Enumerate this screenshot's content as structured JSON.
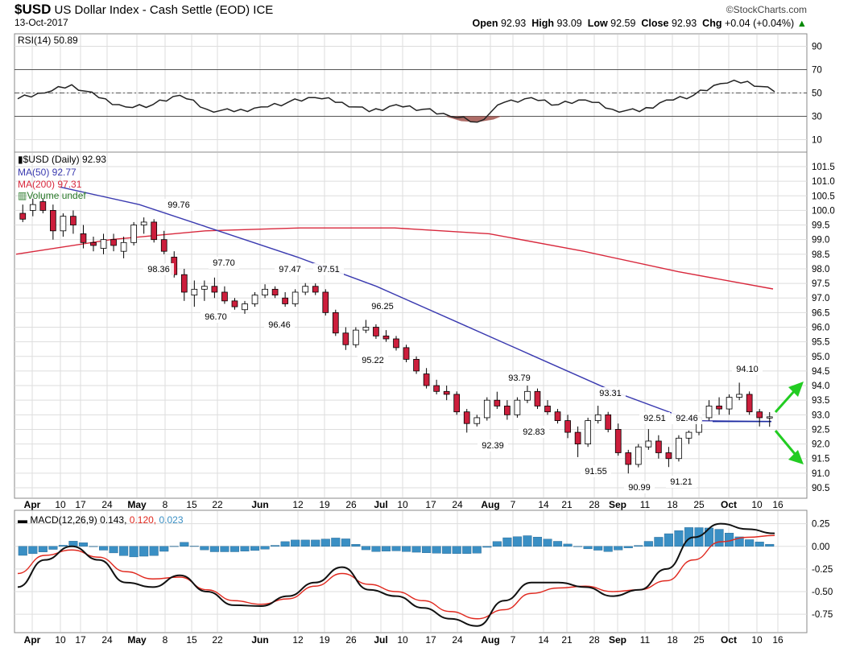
{
  "header": {
    "symbol": "$USD",
    "name": "US Dollar Index - Cash Settle (EOD)",
    "exchange": "ICE",
    "date": "13-Oct-2017",
    "brand": "StockCharts.com",
    "ohlc": {
      "open_label": "Open",
      "open": "92.93",
      "high_label": "High",
      "high": "93.09",
      "low_label": "Low",
      "low": "92.59",
      "close_label": "Close",
      "close": "92.93",
      "chg_label": "Chg",
      "chg": "+0.04 (+0.04%)"
    }
  },
  "colors": {
    "up_candle": "#ffffff",
    "down_candle": "#cc1e3c",
    "ma50": "#3a3ab0",
    "ma200": "#d8283c",
    "rsi_line": "#222222",
    "rsi_fill_low": "#a0524c",
    "macd_line": "#111111",
    "signal_line": "#e0281e",
    "histogram": "#3a8fc4",
    "arrows": "#22cc22",
    "grid": "#dddddd",
    "support_line": "#1a2aa0"
  },
  "legends": {
    "rsi": "RSI(14) 50.89",
    "price_name": "$USD (Daily) 92.93",
    "ma50": "MA(50) 92.77",
    "ma200": "MA(200) 97.31",
    "volume": "Volume undef",
    "macd_name": "MACD(12,26,9)",
    "macd_val": "0.143,",
    "signal_val": "0.120,",
    "hist_val": "0.023"
  },
  "chart_data": [
    {
      "type": "line",
      "panel": "RSI(14)",
      "ylim": [
        0,
        100
      ],
      "yticks": [
        "90",
        "70",
        "50",
        "30",
        "10"
      ],
      "reference_lines": [
        70,
        50,
        30
      ],
      "x": [
        "Apr 3",
        "Apr 10",
        "Apr 17",
        "Apr 24",
        "May 1",
        "May 8",
        "May 15",
        "May 22",
        "May 29",
        "Jun 5",
        "Jun 12",
        "Jun 19",
        "Jun 26",
        "Jul 3",
        "Jul 10",
        "Jul 17",
        "Jul 24",
        "Jul 31",
        "Aug 7",
        "Aug 14",
        "Aug 21",
        "Aug 28",
        "Sep 4",
        "Sep 11",
        "Sep 18",
        "Sep 25",
        "Oct 2",
        "Oct 9",
        "Oct 13"
      ],
      "values": [
        45,
        50,
        57,
        46,
        38,
        40,
        48,
        36,
        34,
        38,
        42,
        46,
        42,
        34,
        40,
        36,
        30,
        25,
        42,
        46,
        40,
        44,
        36,
        34,
        44,
        48,
        58,
        60,
        51
      ]
    },
    {
      "type": "candlestick",
      "panel": "$USD (Daily)",
      "ylim": [
        90.5,
        101.5
      ],
      "yticks": [
        "101.5",
        "101.0",
        "100.5",
        "100.0",
        "99.5",
        "99.0",
        "98.5",
        "98.0",
        "97.5",
        "97.0",
        "96.5",
        "96.0",
        "95.5",
        "95.0",
        "94.5",
        "94.0",
        "93.5",
        "93.0",
        "92.5",
        "92.0",
        "91.5",
        "91.0",
        "90.5"
      ],
      "xticks": [
        "Apr",
        "10",
        "17",
        "24",
        "May",
        "8",
        "15",
        "22",
        "Jun",
        "12",
        "19",
        "26",
        "Jul",
        "10",
        "17",
        "24",
        "Aug",
        "7",
        "14",
        "21",
        "28",
        "Sep",
        "11",
        "18",
        "25",
        "Oct",
        "10",
        "16"
      ],
      "series": [
        {
          "name": "MA(50)",
          "x": [
            "Apr 10",
            "May 1",
            "May 22",
            "Jun 12",
            "Jul 3",
            "Jul 24",
            "Aug 14",
            "Sep 4",
            "Sep 25",
            "Oct 13"
          ],
          "values": [
            100.8,
            100.2,
            99.3,
            98.4,
            97.4,
            96.2,
            95.0,
            93.8,
            92.8,
            92.77
          ]
        },
        {
          "name": "MA(200)",
          "x": [
            "Apr 3",
            "May 1",
            "May 29",
            "Jun 26",
            "Jul 24",
            "Aug 14",
            "Sep 4",
            "Sep 25",
            "Oct 13"
          ],
          "values": [
            98.5,
            99.0,
            99.3,
            99.4,
            99.4,
            99.2,
            98.6,
            97.9,
            97.31
          ]
        }
      ],
      "candles": [
        [
          99.9,
          100.2,
          99.6,
          99.7
        ],
        [
          100.0,
          100.4,
          99.8,
          100.2
        ],
        [
          100.3,
          100.4,
          99.9,
          100.0
        ],
        [
          100.0,
          100.2,
          99.0,
          99.3
        ],
        [
          99.3,
          99.9,
          99.1,
          99.8
        ],
        [
          99.8,
          100.0,
          99.2,
          99.5
        ],
        [
          99.2,
          99.5,
          98.7,
          98.9
        ],
        [
          98.9,
          99.1,
          98.6,
          98.8
        ],
        [
          98.7,
          99.2,
          98.5,
          99.0
        ],
        [
          99.0,
          99.2,
          98.6,
          98.8
        ],
        [
          98.6,
          99.1,
          98.36,
          98.9
        ],
        [
          98.9,
          99.6,
          98.8,
          99.5
        ],
        [
          99.5,
          99.76,
          99.2,
          99.6
        ],
        [
          99.6,
          99.7,
          98.9,
          99.0
        ],
        [
          99.0,
          99.3,
          98.5,
          98.6
        ],
        [
          98.4,
          98.6,
          97.7,
          97.8
        ],
        [
          97.8,
          98.0,
          96.9,
          97.2
        ],
        [
          97.1,
          97.6,
          96.7,
          97.3
        ],
        [
          97.3,
          97.6,
          96.9,
          97.4
        ],
        [
          97.4,
          97.7,
          97.0,
          97.2
        ],
        [
          97.2,
          97.4,
          96.8,
          96.9
        ],
        [
          96.9,
          97.0,
          96.6,
          96.7
        ],
        [
          96.6,
          96.9,
          96.46,
          96.8
        ],
        [
          96.8,
          97.2,
          96.7,
          97.1
        ],
        [
          97.1,
          97.47,
          97.0,
          97.3
        ],
        [
          97.3,
          97.4,
          97.0,
          97.1
        ],
        [
          97.0,
          97.2,
          96.7,
          96.8
        ],
        [
          96.8,
          97.3,
          96.7,
          97.2
        ],
        [
          97.2,
          97.51,
          97.1,
          97.4
        ],
        [
          97.4,
          97.5,
          97.1,
          97.2
        ],
        [
          97.2,
          97.3,
          96.4,
          96.5
        ],
        [
          96.5,
          96.6,
          95.7,
          95.8
        ],
        [
          95.8,
          96.0,
          95.22,
          95.4
        ],
        [
          95.4,
          96.0,
          95.3,
          95.9
        ],
        [
          95.9,
          96.25,
          95.8,
          96.0
        ],
        [
          96.0,
          96.1,
          95.6,
          95.7
        ],
        [
          95.7,
          95.9,
          95.5,
          95.6
        ],
        [
          95.6,
          95.7,
          95.2,
          95.3
        ],
        [
          95.3,
          95.4,
          94.8,
          94.9
        ],
        [
          94.9,
          95.0,
          94.4,
          94.5
        ],
        [
          94.4,
          94.6,
          93.9,
          94.0
        ],
        [
          94.0,
          94.2,
          93.7,
          93.8
        ],
        [
          93.8,
          94.0,
          93.5,
          93.7
        ],
        [
          93.7,
          93.8,
          93.0,
          93.1
        ],
        [
          93.1,
          93.2,
          92.39,
          92.7
        ],
        [
          92.7,
          93.0,
          92.6,
          92.9
        ],
        [
          92.9,
          93.6,
          92.8,
          93.5
        ],
        [
          93.5,
          93.79,
          93.2,
          93.3
        ],
        [
          93.3,
          93.5,
          92.83,
          93.0
        ],
        [
          93.0,
          93.6,
          92.9,
          93.5
        ],
        [
          93.5,
          94.0,
          93.4,
          93.8
        ],
        [
          93.8,
          93.9,
          93.2,
          93.3
        ],
        [
          93.3,
          93.5,
          93.0,
          93.1
        ],
        [
          93.1,
          93.2,
          92.7,
          92.8
        ],
        [
          92.8,
          93.0,
          92.2,
          92.4
        ],
        [
          92.4,
          92.6,
          91.55,
          92.0
        ],
        [
          92.0,
          92.9,
          91.9,
          92.8
        ],
        [
          92.8,
          93.31,
          92.7,
          93.0
        ],
        [
          93.0,
          93.1,
          92.4,
          92.5
        ],
        [
          92.5,
          92.7,
          91.6,
          91.7
        ],
        [
          91.7,
          91.8,
          90.99,
          91.3
        ],
        [
          91.3,
          92.0,
          91.2,
          91.9
        ],
        [
          91.9,
          92.51,
          91.8,
          92.1
        ],
        [
          92.1,
          92.3,
          91.5,
          91.7
        ],
        [
          91.7,
          91.9,
          91.21,
          91.5
        ],
        [
          91.5,
          92.3,
          91.4,
          92.2
        ],
        [
          92.2,
          92.46,
          92.0,
          92.4
        ],
        [
          92.4,
          93.0,
          92.3,
          92.9
        ],
        [
          92.9,
          93.5,
          92.8,
          93.3
        ],
        [
          93.3,
          93.6,
          93.0,
          93.2
        ],
        [
          93.2,
          93.7,
          93.0,
          93.6
        ],
        [
          93.6,
          94.1,
          93.5,
          93.7
        ],
        [
          93.7,
          93.8,
          93.0,
          93.1
        ],
        [
          93.1,
          93.2,
          92.6,
          92.9
        ],
        [
          92.9,
          93.09,
          92.59,
          92.93
        ]
      ],
      "annotations": [
        {
          "label": "99.76",
          "x": "May 12",
          "y": 99.76
        },
        {
          "label": "98.36",
          "x": "May 8",
          "y": 98.36
        },
        {
          "label": "97.70",
          "x": "May 26",
          "y": 97.7
        },
        {
          "label": "96.70",
          "x": "May 22",
          "y": 96.7
        },
        {
          "label": "97.47",
          "x": "Jun 12",
          "y": 97.47
        },
        {
          "label": "96.46",
          "x": "Jun 8",
          "y": 96.46
        },
        {
          "label": "97.51",
          "x": "Jun 20",
          "y": 97.51
        },
        {
          "label": "96.25",
          "x": "Jul 11",
          "y": 96.25
        },
        {
          "label": "95.22",
          "x": "Jul 7",
          "y": 95.22
        },
        {
          "label": "93.79",
          "x": "Aug 14",
          "y": 93.79
        },
        {
          "label": "92.39",
          "x": "Aug 3",
          "y": 92.39
        },
        {
          "label": "92.83",
          "x": "Aug 16",
          "y": 92.83
        },
        {
          "label": "93.31",
          "x": "Sep 7",
          "y": 93.31
        },
        {
          "label": "91.55",
          "x": "Aug 29",
          "y": 91.55
        },
        {
          "label": "90.99",
          "x": "Sep 8",
          "y": 90.99
        },
        {
          "label": "92.51",
          "x": "Sep 14",
          "y": 92.51
        },
        {
          "label": "91.21",
          "x": "Sep 15",
          "y": 91.21
        },
        {
          "label": "92.46",
          "x": "Sep 21",
          "y": 92.46
        },
        {
          "label": "94.10",
          "x": "Oct 9",
          "y": 94.1
        }
      ]
    },
    {
      "type": "line",
      "panel": "MACD(12,26,9)",
      "ylim": [
        -0.9,
        0.3
      ],
      "yticks": [
        "0.25",
        "0.00",
        "-0.25",
        "-0.50",
        "-0.75"
      ],
      "xticks": [
        "Apr",
        "10",
        "17",
        "24",
        "May",
        "8",
        "15",
        "22",
        "Jun",
        "12",
        "19",
        "26",
        "Jul",
        "10",
        "17",
        "24",
        "Aug",
        "7",
        "14",
        "21",
        "28",
        "Sep",
        "11",
        "18",
        "25",
        "Oct",
        "10",
        "16"
      ],
      "series": [
        {
          "name": "MACD",
          "values": [
            -0.45,
            -0.15,
            0.0,
            -0.15,
            -0.4,
            -0.45,
            -0.32,
            -0.5,
            -0.65,
            -0.66,
            -0.55,
            -0.4,
            -0.23,
            -0.48,
            -0.55,
            -0.68,
            -0.8,
            -0.88,
            -0.6,
            -0.4,
            -0.4,
            -0.45,
            -0.55,
            -0.48,
            -0.25,
            0.1,
            0.25,
            0.19,
            0.143
          ]
        },
        {
          "name": "Signal",
          "values": [
            -0.3,
            -0.1,
            -0.04,
            -0.12,
            -0.28,
            -0.36,
            -0.34,
            -0.48,
            -0.6,
            -0.64,
            -0.58,
            -0.44,
            -0.3,
            -0.42,
            -0.5,
            -0.6,
            -0.72,
            -0.8,
            -0.7,
            -0.52,
            -0.46,
            -0.44,
            -0.5,
            -0.48,
            -0.38,
            -0.15,
            0.05,
            0.1,
            0.12
          ]
        },
        {
          "name": "Histogram",
          "values": [
            -0.1,
            -0.05,
            0.07,
            -0.04,
            -0.12,
            -0.1,
            0.05,
            -0.06,
            -0.06,
            -0.04,
            0.07,
            0.07,
            0.1,
            -0.06,
            -0.05,
            -0.07,
            -0.08,
            -0.08,
            0.09,
            0.12,
            0.06,
            -0.02,
            -0.06,
            0.0,
            0.12,
            0.21,
            0.2,
            0.09,
            0.023
          ]
        }
      ]
    }
  ]
}
